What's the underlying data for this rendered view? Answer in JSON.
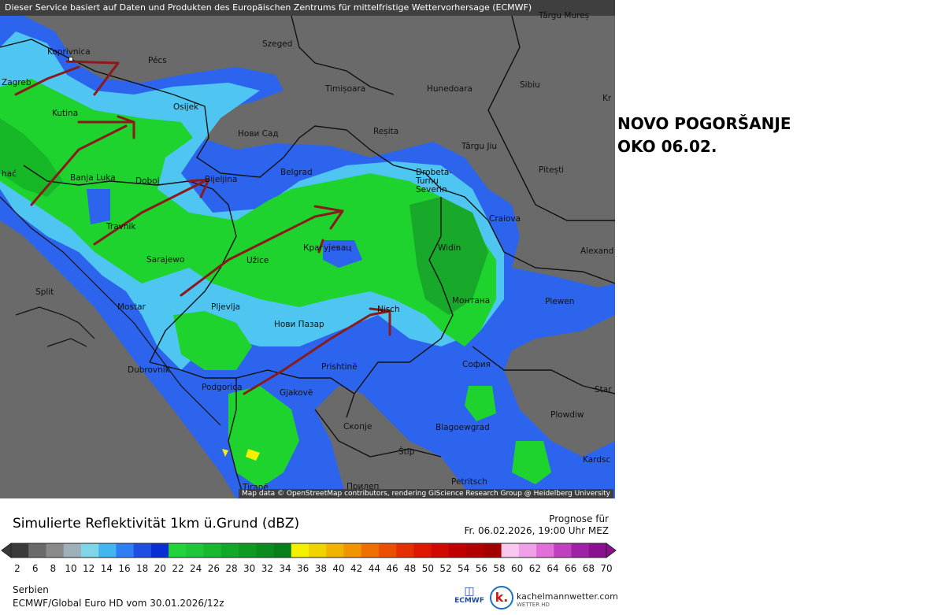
{
  "header_banner": "Dieser Service basiert auf Daten und Produkten des Europäischen Zentrums für mittelfristige Wettervorhersage (ECMWF)",
  "map_credit": "Map data © OpenStreetMap contributors, rendering GIScience Research Group @ Heidelberg University",
  "annotation": {
    "line1": "NOVO POGORŠANJE",
    "line2": "OKO 06.02."
  },
  "cities": [
    {
      "name": "Koprivnica"
    },
    {
      "name": "Zagreb"
    },
    {
      "name": "Pécs"
    },
    {
      "name": "Szeged"
    },
    {
      "name": "Târgu Mureș"
    },
    {
      "name": "Timișoara"
    },
    {
      "name": "Hunedoara"
    },
    {
      "name": "Sibiu"
    },
    {
      "name": "Kr"
    },
    {
      "name": "Osijek"
    },
    {
      "name": "Kutina"
    },
    {
      "name": "Нови Сад"
    },
    {
      "name": "Reșita"
    },
    {
      "name": "Târgu Jiu"
    },
    {
      "name": "Pitești"
    },
    {
      "name": "hać"
    },
    {
      "name": "Banja Luka"
    },
    {
      "name": "Doboj"
    },
    {
      "name": "Bijeljina"
    },
    {
      "name": "Belgrad"
    },
    {
      "name": "Drobeta-Turnu Severin"
    },
    {
      "name": "Craiova"
    },
    {
      "name": "Travnik"
    },
    {
      "name": "Крагујевац"
    },
    {
      "name": "Sarajewo"
    },
    {
      "name": "Užice"
    },
    {
      "name": "Widin"
    },
    {
      "name": "Alexand"
    },
    {
      "name": "Split"
    },
    {
      "name": "Mostar"
    },
    {
      "name": "Pljevlja"
    },
    {
      "name": "Монтана"
    },
    {
      "name": "Plewen"
    },
    {
      "name": "Нови Пазар"
    },
    {
      "name": "Nisch"
    },
    {
      "name": "Dubrovnik"
    },
    {
      "name": "Prishtinë"
    },
    {
      "name": "София"
    },
    {
      "name": "Podgorica"
    },
    {
      "name": "Gjakovë"
    },
    {
      "name": "Star"
    },
    {
      "name": "Plowdiw"
    },
    {
      "name": "Скопје"
    },
    {
      "name": "Blagoewgrad"
    },
    {
      "name": "Štip"
    },
    {
      "name": "Kardsc"
    },
    {
      "name": "Tiranë"
    },
    {
      "name": "Прилеп"
    },
    {
      "name": "Petritsch"
    }
  ],
  "legend": {
    "title": "Simulierte Reflektivität 1km ü.Grund (dBZ)",
    "prognose_label": "Prognose für",
    "prognose_time": "Fr. 06.02.2026, 19:00 Uhr MEZ",
    "ticks": [
      "2",
      "6",
      "8",
      "10",
      "12",
      "14",
      "16",
      "18",
      "20",
      "22",
      "24",
      "26",
      "28",
      "30",
      "32",
      "34",
      "36",
      "38",
      "40",
      "42",
      "44",
      "46",
      "48",
      "50",
      "52",
      "54",
      "56",
      "58",
      "60",
      "62",
      "64",
      "66",
      "68",
      "70"
    ],
    "colors": [
      "#3a3a3a",
      "#6a6a6a",
      "#8a8a8a",
      "#9fb0b8",
      "#7fd6e8",
      "#43b6f0",
      "#2f7ff2",
      "#1f4fe0",
      "#0a2fd0",
      "#22d43a",
      "#1fc63a",
      "#18b82f",
      "#12a828",
      "#0f9a22",
      "#0c8c1e",
      "#08801a",
      "#f5f000",
      "#f0d400",
      "#f0b400",
      "#f09400",
      "#ee7000",
      "#ea5000",
      "#e43000",
      "#de1800",
      "#d00a00",
      "#c00000",
      "#b00000",
      "#a00000",
      "#f8c8f0",
      "#f0a0e8",
      "#e070d8",
      "#c040c0",
      "#a020a8",
      "#8a1090"
    ],
    "region": "Serbien",
    "model": "ECMWF/Global Euro HD vom  30.01.2026/12z"
  },
  "logos": {
    "ecmwf": "ECMWF",
    "km_letter": "k.",
    "km_name": "kachelmannwetter.com",
    "km_sub": "WETTER HD"
  }
}
